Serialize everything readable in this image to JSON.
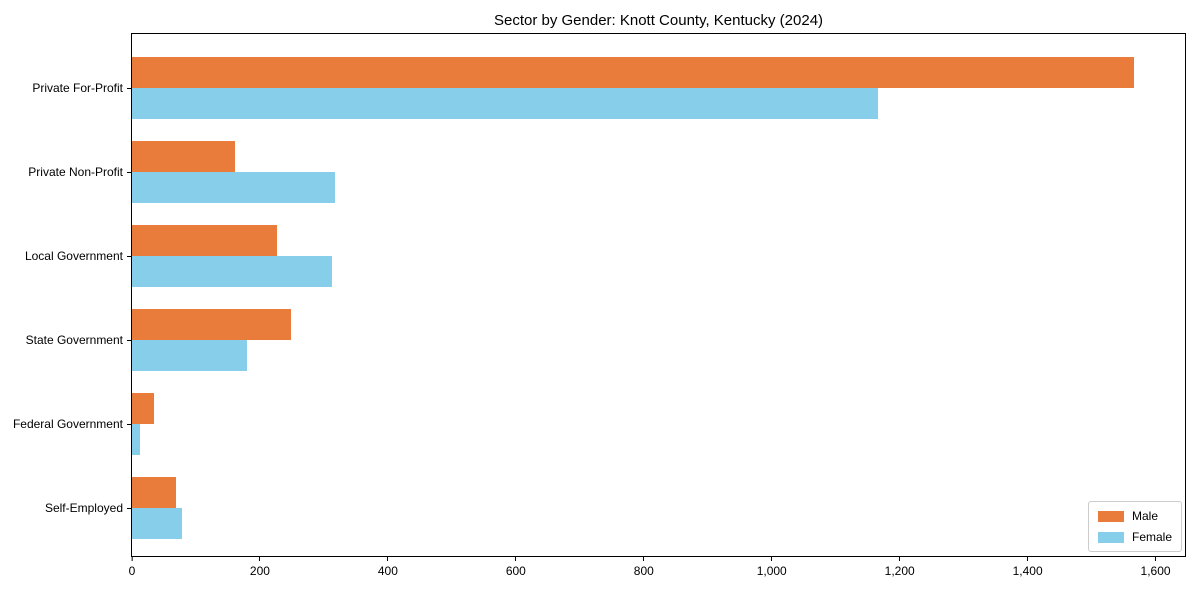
{
  "chart_data": {
    "type": "bar",
    "orientation": "horizontal",
    "title": "Sector by Gender: Knott County, Kentucky (2024)",
    "categories": [
      "Private For-Profit",
      "Private Non-Profit",
      "Local Government",
      "State Government",
      "Federal Government",
      "Self-Employed"
    ],
    "series": [
      {
        "name": "Male",
        "color": "#E97C3B",
        "values": [
          1567,
          161,
          227,
          248,
          34,
          69
        ]
      },
      {
        "name": "Female",
        "color": "#87CEEB",
        "values": [
          1166,
          317,
          312,
          179,
          12,
          78
        ]
      }
    ],
    "xlabel": "",
    "ylabel": "",
    "xlim": [
      0,
      1646
    ],
    "xticks": {
      "values": [
        0,
        200,
        400,
        600,
        800,
        1000,
        1200,
        1400,
        1600
      ],
      "labels": [
        "0",
        "200",
        "400",
        "600",
        "800",
        "1,000",
        "1,200",
        "1,400",
        "1,600"
      ]
    },
    "grid": false,
    "legend": {
      "position": "lower right"
    },
    "colors": {
      "axis": "#000000",
      "background": "#ffffff"
    }
  }
}
